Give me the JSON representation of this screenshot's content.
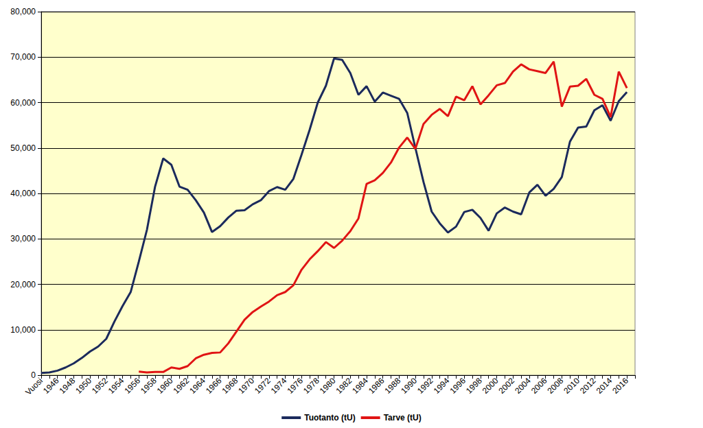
{
  "chart_data": {
    "type": "line",
    "categories": [
      "Vuosi",
      null,
      "1946",
      null,
      "1948",
      null,
      "1950",
      null,
      "1952",
      null,
      "1954",
      null,
      "1956",
      null,
      "1958",
      null,
      "1960",
      null,
      "1962",
      null,
      "1964",
      null,
      "1966",
      null,
      "1968",
      null,
      "1970",
      null,
      "1972",
      null,
      "1974",
      null,
      "1976",
      null,
      "1978",
      null,
      "1980",
      null,
      "1982",
      null,
      "1984",
      null,
      "1986",
      null,
      "1988",
      null,
      "1990",
      null,
      "1992",
      null,
      "1994",
      null,
      "1996",
      null,
      "1998",
      null,
      "2000",
      null,
      "2002",
      null,
      "2004",
      null,
      "2006",
      null,
      "2008",
      null,
      "2010",
      null,
      "2012",
      null,
      "2014",
      null,
      "2016",
      null
    ],
    "series": [
      {
        "name": "Tuotanto (tU)",
        "color": "#1b2a5c",
        "values": [
          500,
          600,
          1000,
          1700,
          2600,
          3800,
          5200,
          6300,
          8000,
          11800,
          15200,
          18300,
          25000,
          32000,
          41500,
          47700,
          46300,
          41500,
          40800,
          38500,
          35800,
          31500,
          32800,
          34700,
          36200,
          36300,
          37600,
          38500,
          40500,
          41400,
          40800,
          43200,
          48500,
          54000,
          60000,
          63700,
          69700,
          69400,
          66500,
          61700,
          63600,
          60200,
          62200,
          61500,
          60800,
          57700,
          50000,
          42500,
          36000,
          33400,
          31400,
          32700,
          35900,
          36400,
          34600,
          31800,
          35600,
          36900,
          36000,
          35400,
          40200,
          41900,
          39500,
          41000,
          43600,
          51400,
          54500,
          54700,
          58300,
          59400,
          56000,
          60300,
          62300,
          null
        ]
      },
      {
        "name": "Tarve (tU)",
        "color": "#e01414",
        "values": [
          null,
          null,
          null,
          null,
          null,
          null,
          null,
          null,
          null,
          null,
          null,
          null,
          800,
          600,
          700,
          700,
          1700,
          1400,
          2000,
          3700,
          4500,
          4900,
          5000,
          7000,
          9600,
          12200,
          13900,
          15100,
          16200,
          17600,
          18300,
          19800,
          23200,
          25500,
          27300,
          29300,
          28000,
          29600,
          31700,
          34500,
          42100,
          42900,
          44500,
          46800,
          50100,
          52300,
          49800,
          55300,
          57300,
          58600,
          57000,
          61300,
          60500,
          63600,
          59600,
          61600,
          63800,
          64300,
          66800,
          68400,
          67300,
          66900,
          66500,
          69000,
          59100,
          63500,
          63700,
          65200,
          61700,
          60800,
          56800,
          66800,
          63200,
          null
        ]
      }
    ],
    "ylim": [
      0,
      80000
    ],
    "yticks": [
      0,
      10000,
      20000,
      30000,
      40000,
      50000,
      60000,
      70000,
      80000
    ],
    "grid": true,
    "legend": "bottom"
  }
}
